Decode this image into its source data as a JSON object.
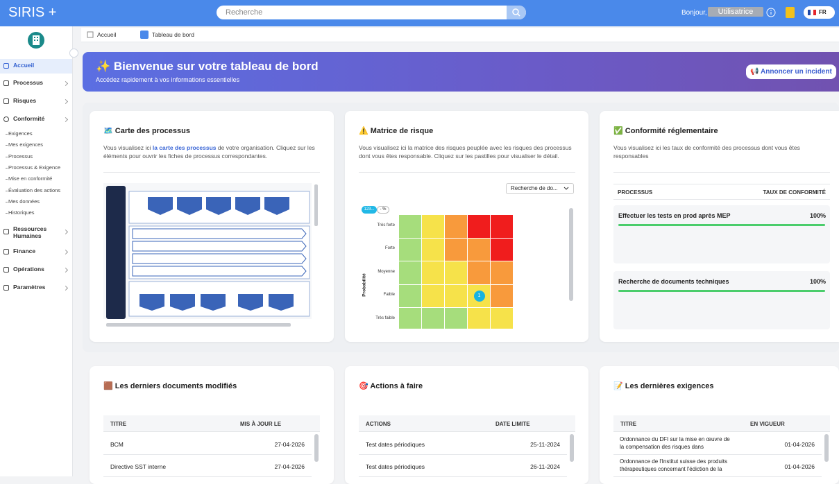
{
  "header": {
    "logo": "SIRIS +",
    "search_placeholder": "Recherche",
    "greeting": "Bonjour,",
    "user": "Utilisatrice",
    "language": "FR"
  },
  "sidebar": {
    "items": [
      "Accueil",
      "Processus",
      "Risques",
      "Conformité"
    ],
    "sub_items": [
      "Exigences",
      "Mes exigences",
      "Processus",
      "Processus & Exigence",
      "Mise en conformité",
      "Évaluation des actions",
      "Mes données",
      "Historiques"
    ],
    "more_items": [
      "Ressources Humaines",
      "Finance",
      "Opérations",
      "Paramètres"
    ]
  },
  "breadcrumb": [
    "Accueil",
    "Tableau de bord"
  ],
  "banner": {
    "title": "✨ Bienvenue sur votre tableau de bord",
    "subtitle": "Accédez rapidement à vos informations essentielles",
    "button": "📢 Annoncer un incident"
  },
  "process_map": {
    "title": "🗺️ Carte des processus",
    "description_start": "Vous visualisez ici ",
    "description_link": "la carte des processus",
    "description_end": " de votre organisation. Cliquez sur les éléments pour ouvrir les fiches de processus correspondantes."
  },
  "risk_matrix": {
    "title": "⚠️ Matrice de risque",
    "description": "Vous visualisez ici la matrice des risques peuplée avec les risques des processus dont vous êtes responsable. Cliquez sur les pastilles pour visualiser le détail.",
    "dropdown": "Recherche de do...",
    "pill_left": "123...",
    "pill_right": "- %",
    "axis_label": "Probabilité",
    "rows": [
      {
        "label": "Très forte",
        "colors": [
          "#a6dd7c",
          "#f6e24a",
          "#f89a3c",
          "#f01d1d",
          "#f01d1d"
        ],
        "counts": [
          null,
          null,
          null,
          null,
          null
        ]
      },
      {
        "label": "Forte",
        "colors": [
          "#a6dd7c",
          "#f6e24a",
          "#f89a3c",
          "#f89a3c",
          "#f01d1d"
        ],
        "counts": [
          null,
          null,
          null,
          null,
          null
        ]
      },
      {
        "label": "Moyenne",
        "colors": [
          "#a6dd7c",
          "#f6e24a",
          "#f6e24a",
          "#f89a3c",
          "#f89a3c"
        ],
        "counts": [
          null,
          null,
          null,
          null,
          null
        ]
      },
      {
        "label": "Faible",
        "colors": [
          "#a6dd7c",
          "#f6e24a",
          "#f6e24a",
          "#f6e24a",
          "#f89a3c"
        ],
        "counts": [
          null,
          null,
          null,
          1,
          null
        ]
      },
      {
        "label": "Très faible",
        "colors": [
          "#a6dd7c",
          "#a6dd7c",
          "#a6dd7c",
          "#f6e24a",
          "#f6e24a"
        ],
        "counts": [
          null,
          null,
          null,
          null,
          null
        ]
      }
    ]
  },
  "compliance": {
    "title": "✅ Conformité réglementaire",
    "description": "Vous visualisez ici les taux de conformité des processus dont vous êtes responsables",
    "columns": [
      "PROCESSUS",
      "TAUX DE CONFORMITÉ"
    ],
    "rows": [
      {
        "process": "Effectuer les tests en prod après MEP",
        "rate": {
          "value": 100,
          "label": "100%"
        }
      },
      {
        "process": "Recherche de documents techniques",
        "rate": {
          "value": 100,
          "label": "100%"
        }
      }
    ]
  },
  "documents": {
    "title": "🟫 Les derniers documents modifiés",
    "columns": [
      "TITRE",
      "MIS À JOUR LE"
    ],
    "rows": [
      [
        "BCM",
        "27-04-2026"
      ],
      [
        "Directive SST interne",
        "27-04-2026"
      ]
    ]
  },
  "actions": {
    "title": "🎯 Actions à faire",
    "columns": [
      "ACTIONS",
      "DATE LIMITE"
    ],
    "rows": [
      [
        "Test dates périodiques",
        "25-11-2024"
      ],
      [
        "Test dates périodiques",
        "26-11-2024"
      ]
    ]
  },
  "requirements": {
    "title": "📝 Les dernières exigences",
    "columns": [
      "TITRE",
      "EN VIGUEUR"
    ],
    "rows": [
      [
        "Ordonnance du DFI sur la mise en œuvre de la compensation des risques dans l'assurance-maladie (OCoR-DFI)",
        "01-04-2026"
      ],
      [
        "Ordonnance de l'Institut suisse des produits thérapeutiques concernant l'édiction de la pharmacopée",
        "01-04-2026"
      ]
    ]
  }
}
